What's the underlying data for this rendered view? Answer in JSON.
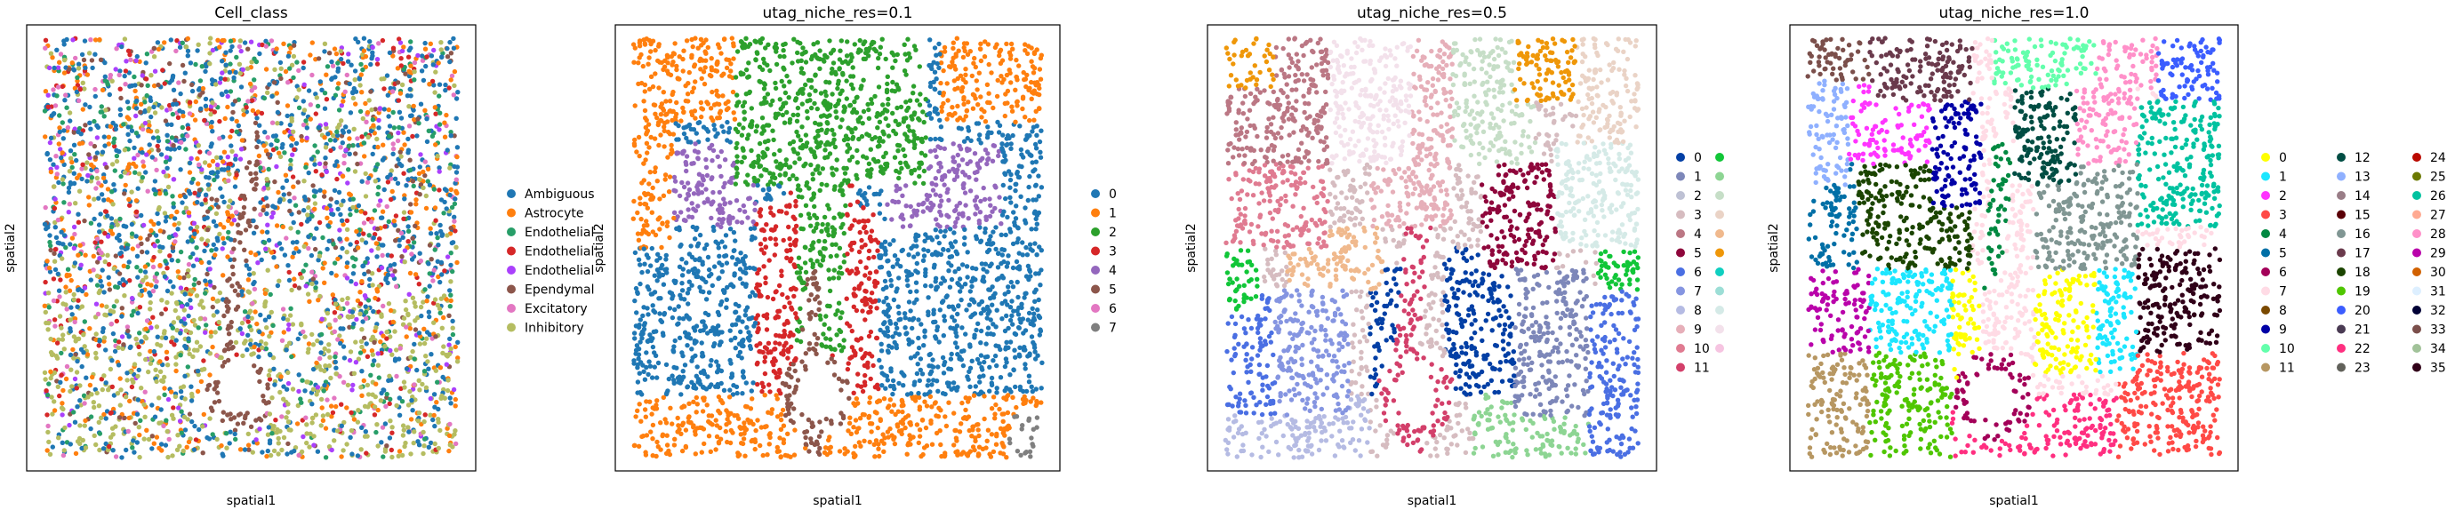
{
  "chart_data": [
    {
      "type": "scatter",
      "title": "Cell_class",
      "xlabel": "spatial1",
      "ylabel": "spatial2",
      "legend": "right",
      "grid": false,
      "categories": [
        {
          "name": "Ambiguous",
          "color": "#1f77b4"
        },
        {
          "name": "Astrocyte",
          "color": "#ff7f0e"
        },
        {
          "name": "Endothelial",
          "color": "#279e68"
        },
        {
          "name": "Endothelial",
          "color": "#d62728"
        },
        {
          "name": "Endothelial",
          "color": "#aa40fc"
        },
        {
          "name": "Ependymal",
          "color": "#8c564b"
        },
        {
          "name": "Excitatory",
          "color": "#e377c2"
        },
        {
          "name": "Inhibitory",
          "color": "#b5bd61"
        }
      ]
    },
    {
      "type": "scatter",
      "title": "utag_niche_res=0.1",
      "xlabel": "spatial1",
      "ylabel": "spatial2",
      "legend": "right",
      "grid": false,
      "categories": [
        {
          "name": "0",
          "color": "#1f77b4"
        },
        {
          "name": "1",
          "color": "#ff7f0e"
        },
        {
          "name": "2",
          "color": "#2ca02c"
        },
        {
          "name": "3",
          "color": "#d62728"
        },
        {
          "name": "4",
          "color": "#9467bd"
        },
        {
          "name": "5",
          "color": "#8c564b"
        },
        {
          "name": "6",
          "color": "#e377c2"
        },
        {
          "name": "7",
          "color": "#7f7f7f"
        }
      ]
    },
    {
      "type": "scatter",
      "title": "utag_niche_res=0.5",
      "xlabel": "spatial1",
      "ylabel": "spatial2",
      "legend": "right",
      "grid": false,
      "categories": [
        {
          "name": "0",
          "color": "#023fa5"
        },
        {
          "name": "1",
          "color": "#7d87b9"
        },
        {
          "name": "2",
          "color": "#bec1d4"
        },
        {
          "name": "3",
          "color": "#d6bcc0"
        },
        {
          "name": "4",
          "color": "#bb7784"
        },
        {
          "name": "5",
          "color": "#8e063b"
        },
        {
          "name": "6",
          "color": "#4a6fe3"
        },
        {
          "name": "7",
          "color": "#8595e1"
        },
        {
          "name": "8",
          "color": "#b5bbe3"
        },
        {
          "name": "9",
          "color": "#e6afb9"
        },
        {
          "name": "10",
          "color": "#e07b91"
        },
        {
          "name": "11",
          "color": "#d33f6a"
        },
        {
          "name": "",
          "color": "#11c638"
        },
        {
          "name": "",
          "color": "#8dd593"
        },
        {
          "name": "",
          "color": "#c6dec7"
        },
        {
          "name": "",
          "color": "#ead3c6"
        },
        {
          "name": "",
          "color": "#f0b98d"
        },
        {
          "name": "",
          "color": "#ef9708"
        },
        {
          "name": "",
          "color": "#0fcfc0"
        },
        {
          "name": "",
          "color": "#9cded6"
        },
        {
          "name": "",
          "color": "#d5eae7"
        },
        {
          "name": "",
          "color": "#f3e1eb"
        },
        {
          "name": "",
          "color": "#f6c4e1"
        }
      ]
    },
    {
      "type": "scatter",
      "title": "utag_niche_res=1.0",
      "xlabel": "spatial1",
      "ylabel": "spatial2",
      "legend": "right",
      "grid": false,
      "categories": [
        {
          "name": "0",
          "color": "#ffff00"
        },
        {
          "name": "1",
          "color": "#1ce6ff"
        },
        {
          "name": "2",
          "color": "#ff34ff"
        },
        {
          "name": "3",
          "color": "#ff4a46"
        },
        {
          "name": "4",
          "color": "#008941"
        },
        {
          "name": "5",
          "color": "#006fa6"
        },
        {
          "name": "6",
          "color": "#a30059"
        },
        {
          "name": "7",
          "color": "#ffdbe5"
        },
        {
          "name": "8",
          "color": "#7a4900"
        },
        {
          "name": "9",
          "color": "#0000a6"
        },
        {
          "name": "10",
          "color": "#63ffac"
        },
        {
          "name": "11",
          "color": "#b79762"
        },
        {
          "name": "12",
          "color": "#004d43"
        },
        {
          "name": "13",
          "color": "#8fb0ff"
        },
        {
          "name": "14",
          "color": "#997d87"
        },
        {
          "name": "15",
          "color": "#5a0007"
        },
        {
          "name": "16",
          "color": "#809693"
        },
        {
          "name": "17",
          "color": "#6a3a4c"
        },
        {
          "name": "18",
          "color": "#1b4400"
        },
        {
          "name": "19",
          "color": "#4fc601"
        },
        {
          "name": "20",
          "color": "#3b5dff"
        },
        {
          "name": "21",
          "color": "#4a3b53"
        },
        {
          "name": "22",
          "color": "#ff2f80"
        },
        {
          "name": "23",
          "color": "#61615a"
        },
        {
          "name": "24",
          "color": "#ba0900"
        },
        {
          "name": "25",
          "color": "#6b7900"
        },
        {
          "name": "26",
          "color": "#00c2a0"
        },
        {
          "name": "27",
          "color": "#ffaa92"
        },
        {
          "name": "28",
          "color": "#ff90c9"
        },
        {
          "name": "29",
          "color": "#b903aa"
        },
        {
          "name": "30",
          "color": "#d16100"
        },
        {
          "name": "31",
          "color": "#ddefff"
        },
        {
          "name": "32",
          "color": "#000035"
        },
        {
          "name": "33",
          "color": "#7b4f4b"
        },
        {
          "name": "34",
          "color": "#a1c299"
        },
        {
          "name": "35",
          "color": "#300018"
        }
      ]
    }
  ]
}
